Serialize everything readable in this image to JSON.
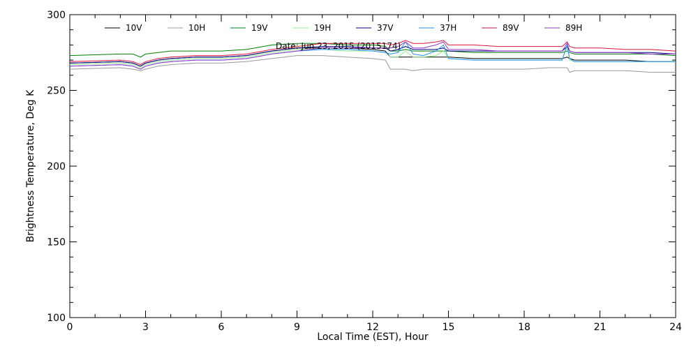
{
  "chart_data": {
    "type": "line",
    "xlabel": "Local Time (EST), Hour",
    "ylabel": "Brightness Temperature, Deg K",
    "annotation": "Date: Jun 23, 2015 (2015174)",
    "xlim": [
      0,
      24
    ],
    "ylim": [
      100,
      300
    ],
    "xticks": [
      "0",
      "3",
      "6",
      "9",
      "12",
      "15",
      "18",
      "21",
      "24"
    ],
    "yticks": [
      "100",
      "150",
      "200",
      "250",
      "300"
    ],
    "grid": false,
    "legend_placement": "top",
    "x": [
      0,
      1,
      2,
      2.5,
      2.8,
      3,
      3.5,
      4,
      5,
      6,
      7,
      8,
      9,
      10,
      11,
      12,
      12.5,
      12.7,
      13,
      13.3,
      13.6,
      14,
      14.5,
      14.8,
      15,
      16,
      17,
      18,
      19,
      19.5,
      19.7,
      19.8,
      20,
      21,
      22,
      23,
      24
    ],
    "series": [
      {
        "name": "10V",
        "color": "#000000",
        "values": [
          268,
          268.5,
          269,
          268,
          266,
          268,
          270,
          271,
          272,
          272,
          273,
          276,
          278,
          278,
          278,
          277,
          276,
          272,
          272,
          272,
          272,
          272,
          272,
          272,
          272,
          271,
          271,
          271,
          271,
          271,
          272,
          271,
          270,
          270,
          270,
          269,
          269
        ]
      },
      {
        "name": "10H",
        "color": "#999999",
        "values": [
          264,
          264.5,
          265,
          264,
          263,
          264,
          266,
          267,
          268,
          268,
          269,
          271,
          273,
          273,
          272,
          271,
          270,
          264,
          264,
          264,
          263,
          264,
          264,
          264,
          264,
          264,
          264,
          264,
          265,
          265,
          265,
          262,
          263,
          263,
          263,
          262,
          262
        ]
      },
      {
        "name": "19V",
        "color": "#008000",
        "values": [
          273,
          273.5,
          274,
          274,
          272,
          274,
          275,
          276,
          276,
          276,
          277,
          280,
          281,
          281,
          280,
          280,
          279,
          276,
          276,
          277,
          276,
          276,
          276,
          276,
          276,
          275,
          275,
          275,
          275,
          275,
          276,
          275,
          274,
          274,
          274,
          274,
          273
        ]
      },
      {
        "name": "19H",
        "color": "#90ee90",
        "values": [
          267,
          267.5,
          268,
          267,
          265,
          267,
          269,
          270,
          271,
          271,
          272,
          275,
          277,
          277,
          276,
          276,
          275,
          272,
          272,
          276,
          272,
          272,
          273,
          276,
          271,
          270,
          270,
          270,
          270,
          270,
          279,
          270,
          269,
          269,
          269,
          269,
          269
        ]
      },
      {
        "name": "37V",
        "color": "#000080",
        "values": [
          268,
          268.5,
          269,
          268,
          266,
          268,
          270,
          271,
          272,
          272,
          273,
          276,
          278,
          279,
          279,
          278,
          278,
          276,
          277,
          279,
          277,
          277,
          277,
          278,
          276,
          276,
          276,
          276,
          276,
          276,
          279,
          276,
          275,
          275,
          275,
          275,
          274
        ]
      },
      {
        "name": "37H",
        "color": "#1e90ff",
        "values": [
          266,
          266.5,
          267,
          266,
          264,
          266,
          268,
          269,
          270,
          270,
          271,
          274,
          276,
          277,
          277,
          276,
          275,
          274,
          275,
          282,
          274,
          273,
          276,
          280,
          271,
          270,
          270,
          270,
          270,
          270,
          280,
          271,
          269,
          269,
          269,
          269,
          269
        ]
      },
      {
        "name": "89V",
        "color": "#dc143c",
        "values": [
          269,
          269.5,
          270,
          269,
          267,
          269,
          271,
          272,
          273,
          273,
          274,
          277,
          279,
          281,
          281,
          281,
          281,
          280,
          281,
          283,
          281,
          281,
          282,
          283,
          280,
          280,
          279,
          279,
          279,
          279,
          282,
          279,
          278,
          278,
          277,
          277,
          276
        ]
      },
      {
        "name": "89H",
        "color": "#9932cc",
        "values": [
          266,
          266.5,
          267,
          266,
          264,
          266,
          268,
          269,
          270,
          270,
          271,
          274,
          276,
          278,
          278,
          278,
          278,
          278,
          279,
          282,
          278,
          278,
          280,
          282,
          277,
          277,
          276,
          276,
          276,
          276,
          281,
          276,
          275,
          275,
          275,
          274,
          274
        ]
      }
    ]
  }
}
